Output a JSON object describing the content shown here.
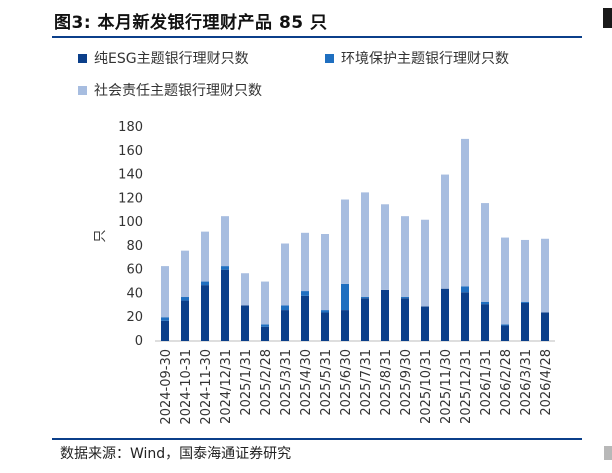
{
  "title": "图3: 本月新发银行理财产品 85 只",
  "source": "数据来源：Wind，国泰海通证券研究",
  "colors": {
    "esg": "#0b3f8a",
    "env": "#1f6fc0",
    "social": "#a7bde0",
    "rule": "#0b3f8a"
  },
  "chart_data": {
    "type": "bar",
    "stacked": true,
    "ylabel": "只",
    "xlabel": "",
    "ylim": [
      0,
      180
    ],
    "yticks": [
      0,
      20,
      40,
      60,
      80,
      100,
      120,
      140,
      160,
      180
    ],
    "grid": false,
    "legend_position": "top",
    "categories": [
      "2024-09-30",
      "2024-10-31",
      "2024-11-30",
      "2024/12/31",
      "2025/1/31",
      "2025/2/28",
      "2025/3/31",
      "2025/4/30",
      "2025/5/31",
      "2025/6/30",
      "2025/7/31",
      "2025/8/31",
      "2025/9/30",
      "2025/10/31",
      "2025/11/30",
      "2025/12/31",
      "2026/1/31",
      "2026/2/28",
      "2026/3/31",
      "2026/4/28"
    ],
    "series": [
      {
        "name": "纯ESG主题银行理财只数",
        "color": "#0b3f8a",
        "values": [
          17,
          34,
          47,
          60,
          30,
          12,
          26,
          38,
          24,
          26,
          36,
          43,
          36,
          29,
          44,
          41,
          31,
          13,
          32,
          24
        ]
      },
      {
        "name": "环境保护主题银行理财只数",
        "color": "#1f6fc0",
        "values": [
          3,
          3,
          3,
          3,
          0,
          2,
          4,
          4,
          2,
          22,
          1,
          0,
          1,
          0,
          0,
          5,
          2,
          1,
          1,
          0
        ]
      },
      {
        "name": "社会责任主题银行理财只数",
        "color": "#a7bde0",
        "values": [
          43,
          39,
          42,
          42,
          27,
          36,
          52,
          49,
          64,
          71,
          88,
          72,
          68,
          73,
          96,
          124,
          83,
          73,
          52,
          62
        ]
      }
    ]
  }
}
